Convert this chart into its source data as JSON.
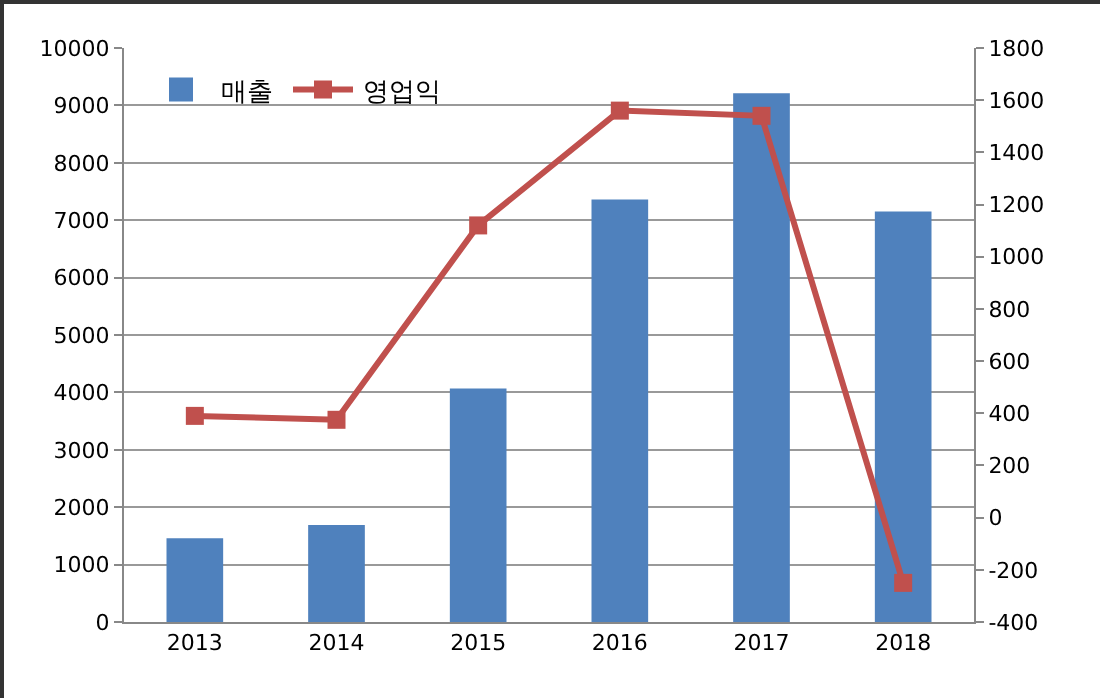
{
  "chart_data": {
    "type": "bar",
    "categories": [
      "2013",
      "2014",
      "2015",
      "2016",
      "2017",
      "2018"
    ],
    "series": [
      {
        "name": "매출",
        "color": "#4f81bd",
        "values": [
          1460,
          1690,
          4070,
          7360,
          9210,
          7150
        ]
      },
      {
        "name": "영업익",
        "type": "line",
        "axis": "y2",
        "color": "#c0504d",
        "marker": "square",
        "values": [
          390,
          375,
          1120,
          1560,
          1540,
          -250
        ]
      }
    ],
    "ylim": [
      0,
      10000
    ],
    "yticks": [
      0,
      1000,
      2000,
      3000,
      4000,
      5000,
      6000,
      7000,
      8000,
      9000,
      10000
    ],
    "y2lim": [
      -400,
      1800
    ],
    "y2ticks": [
      -400,
      -200,
      0,
      200,
      400,
      600,
      800,
      1000,
      1200,
      1400,
      1600,
      1800
    ],
    "grid": "y",
    "legend": "top left"
  }
}
